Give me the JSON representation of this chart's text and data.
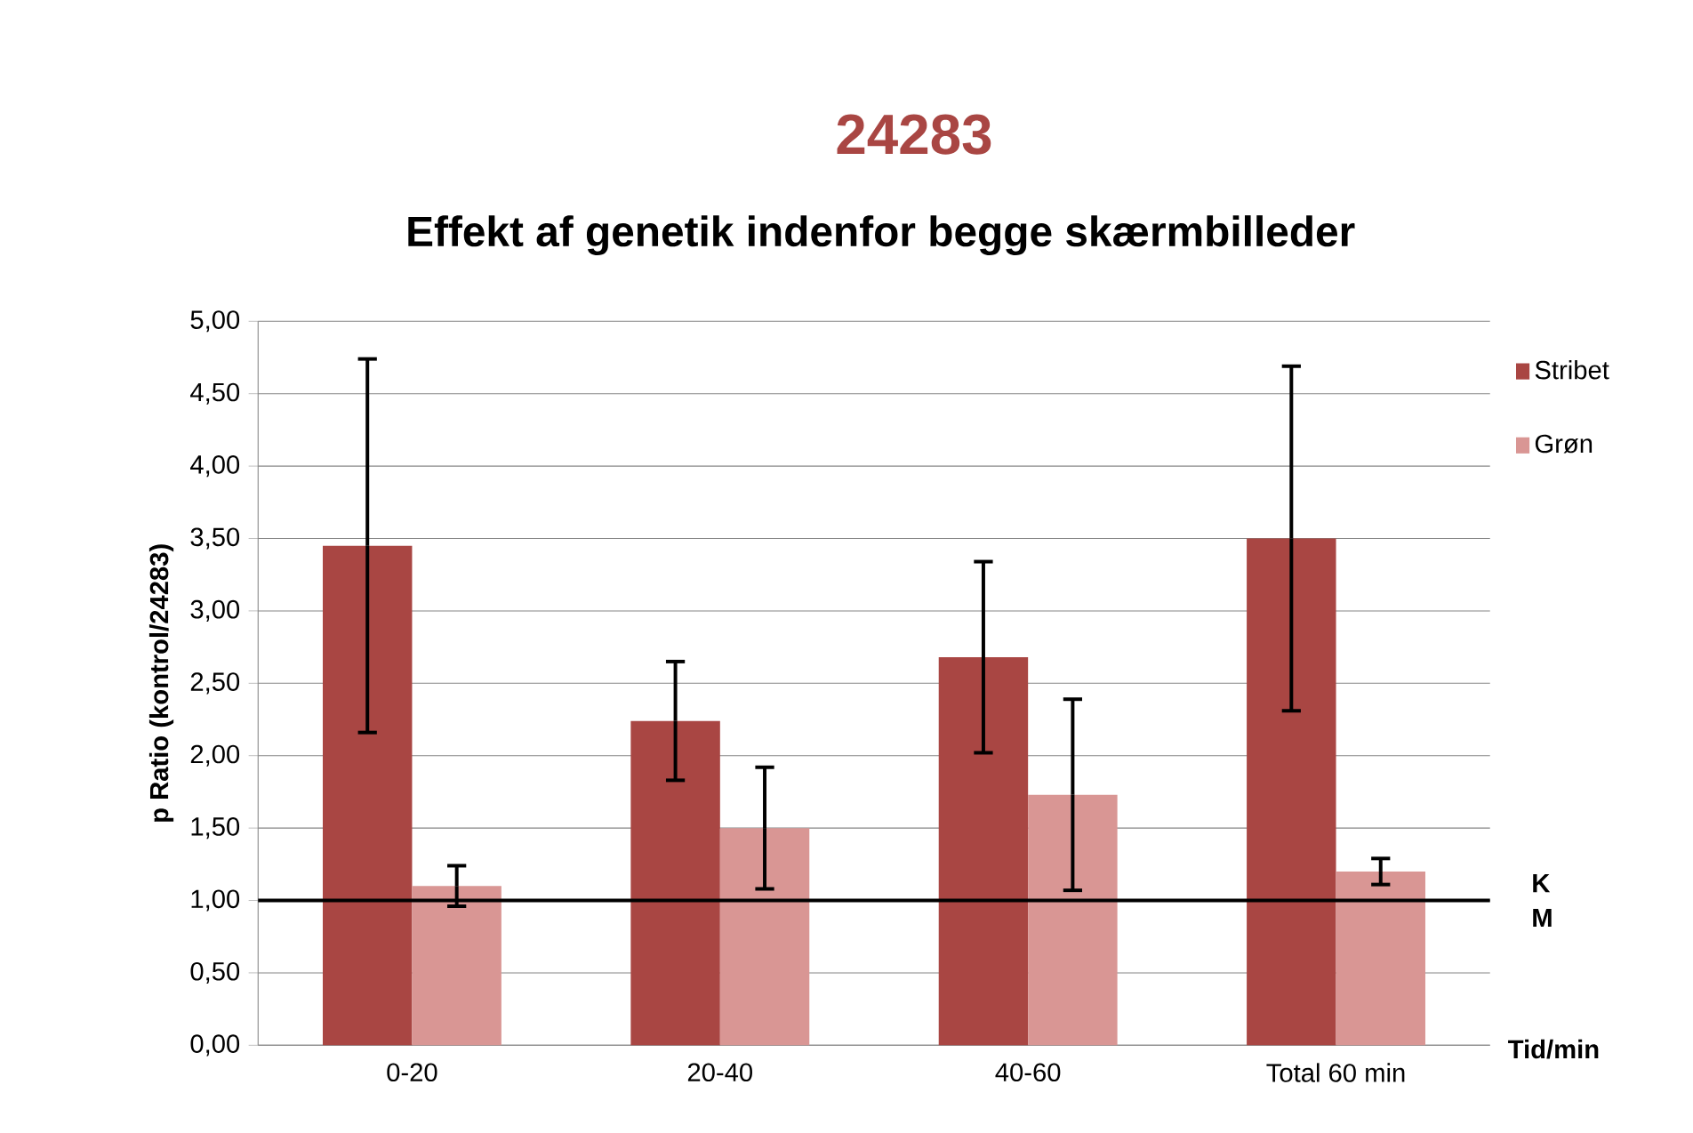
{
  "chart_data": {
    "type": "bar",
    "title": "24283",
    "subtitle": "Effekt af genetik indenfor begge skærmbilleder",
    "xlabel": "Tid/min",
    "ylabel": "p Ratio (kontrol/24283)",
    "categories": [
      "0-20",
      "20-40",
      "40-60",
      "Total 60 min"
    ],
    "series": [
      {
        "name": "Stribet",
        "color": "#a94643",
        "values": [
          3.45,
          2.24,
          2.68,
          3.5
        ],
        "errors": [
          1.29,
          0.41,
          0.66,
          1.19
        ]
      },
      {
        "name": "Grøn",
        "color": "#d99694",
        "values": [
          1.1,
          1.5,
          1.73,
          1.2
        ],
        "errors": [
          0.14,
          0.42,
          0.66,
          0.09
        ]
      }
    ],
    "ylim": [
      0,
      5
    ],
    "yticks": [
      {
        "value": 0,
        "label": "0,00"
      },
      {
        "value": 0.5,
        "label": "0,50"
      },
      {
        "value": 1,
        "label": "1,00"
      },
      {
        "value": 1.5,
        "label": "1,50"
      },
      {
        "value": 2,
        "label": "2,00"
      },
      {
        "value": 2.5,
        "label": "2,50"
      },
      {
        "value": 3,
        "label": "3,00"
      },
      {
        "value": 3.5,
        "label": "3,50"
      },
      {
        "value": 4,
        "label": "4,00"
      },
      {
        "value": 4.5,
        "label": "4,50"
      },
      {
        "value": 5,
        "label": "5,00"
      }
    ],
    "ref_lines": [
      {
        "axis": "y",
        "value": 1,
        "color": "#000000"
      }
    ],
    "annotations": [
      "K",
      "M"
    ],
    "grid": "y",
    "legend": "right"
  }
}
